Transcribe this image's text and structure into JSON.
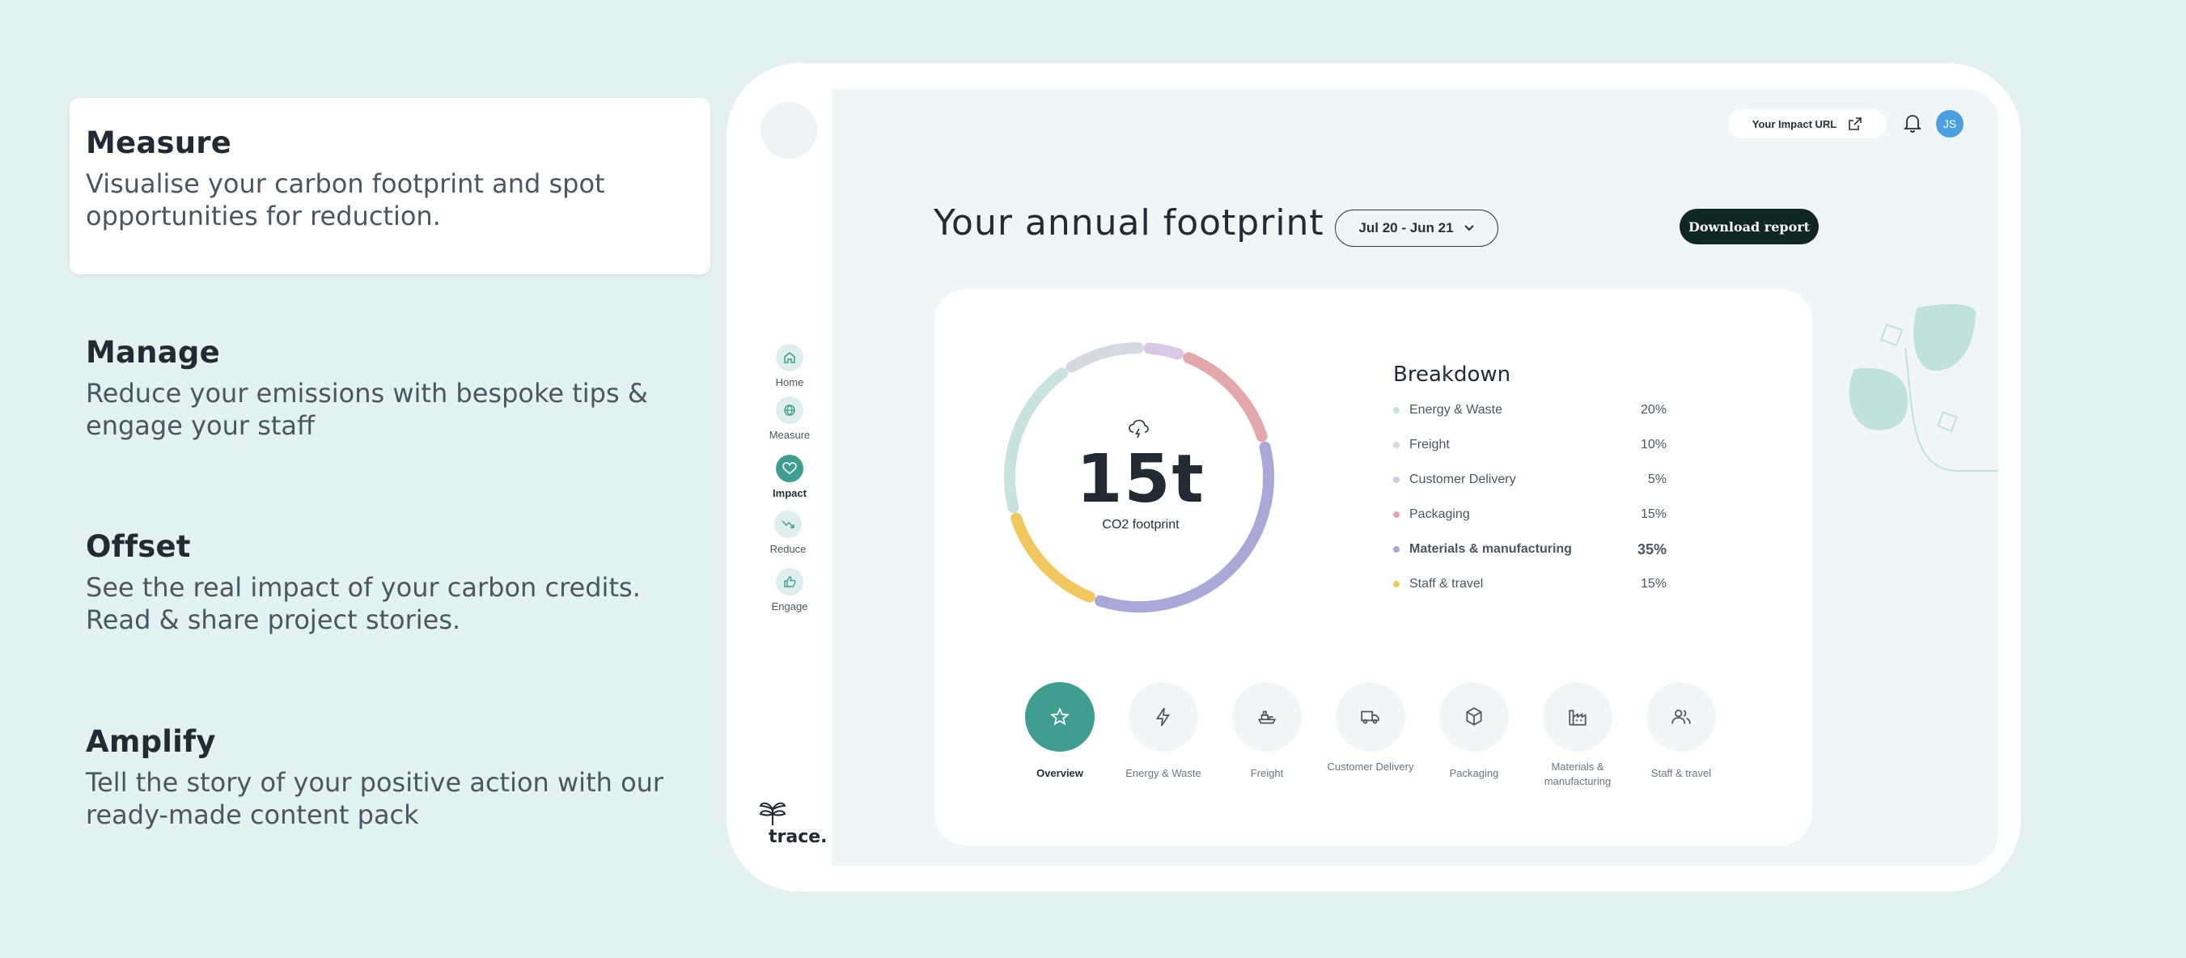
{
  "features": [
    {
      "title": "Measure",
      "description": "Visualise your carbon footprint and spot opportunities for reduction.",
      "active": true
    },
    {
      "title": "Manage",
      "description": "Reduce your emissions with bespoke tips & engage your staff",
      "active": false
    },
    {
      "title": "Offset",
      "description": "See the real impact of your carbon credits. Read & share project stories.",
      "active": false
    },
    {
      "title": "Amplify",
      "description": "Tell the story of your positive action with our ready-made content pack",
      "active": false
    }
  ],
  "sidebar": {
    "items": [
      {
        "label": "Home",
        "icon": "home-icon"
      },
      {
        "label": "Measure",
        "icon": "globe-icon"
      },
      {
        "label": "Impact",
        "icon": "heart-icon",
        "active": true
      },
      {
        "label": "Reduce",
        "icon": "trend-down-icon"
      },
      {
        "label": "Engage",
        "icon": "thumbs-up-icon"
      }
    ],
    "logo": "trace."
  },
  "header": {
    "impact_url_label": "Your Impact URL",
    "avatar_initials": "JS"
  },
  "main": {
    "title": "Your annual footprint",
    "date_range": "Jul 20 - Jun 21",
    "download_label": "Download report",
    "total": {
      "value": "15t",
      "label": "CO2 footprint"
    },
    "breakdown_title": "Breakdown",
    "breakdown": [
      {
        "name": "Energy & Waste",
        "pct": "20%",
        "color": "#c8e3df"
      },
      {
        "name": "Freight",
        "pct": "10%",
        "color": "#d5dae1"
      },
      {
        "name": "Customer Delivery",
        "pct": "5%",
        "color": "#d8c8e6"
      },
      {
        "name": "Packaging",
        "pct": "15%",
        "color": "#e2a8aa"
      },
      {
        "name": "Materials & manufacturing",
        "pct": "35%",
        "color": "#a9a8d6",
        "bold": true
      },
      {
        "name": "Staff & travel",
        "pct": "15%",
        "color": "#f1c75f"
      }
    ],
    "categories": [
      {
        "label": "Overview",
        "icon": "star-icon",
        "active": true
      },
      {
        "label": "Energy & Waste",
        "icon": "lightning-icon"
      },
      {
        "label": "Freight",
        "icon": "ship-icon"
      },
      {
        "label": "Customer Delivery",
        "icon": "truck-icon"
      },
      {
        "label": "Packaging",
        "icon": "box-icon"
      },
      {
        "label": "Materials & manufacturing",
        "icon": "factory-icon"
      },
      {
        "label": "Staff & travel",
        "icon": "people-icon"
      }
    ]
  },
  "chart_data": {
    "type": "pie",
    "categories": [
      "Energy & Waste",
      "Freight",
      "Customer Delivery",
      "Packaging",
      "Materials & manufacturing",
      "Staff & travel"
    ],
    "values": [
      20,
      10,
      5,
      15,
      35,
      15
    ],
    "colors": [
      "#c8e3df",
      "#d5dae1",
      "#d8c8e6",
      "#e2a8aa",
      "#a9a8d6",
      "#f1c75f"
    ]
  }
}
